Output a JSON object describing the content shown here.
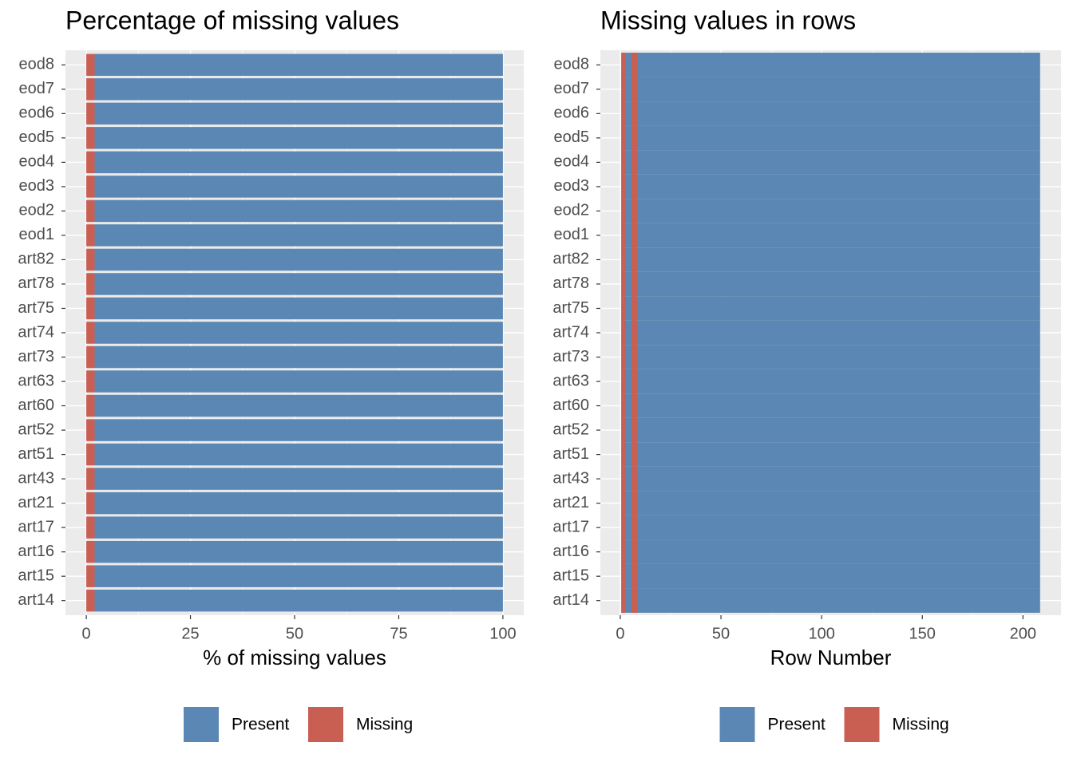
{
  "chart_data": [
    {
      "type": "bar",
      "orientation": "horizontal",
      "stacked": true,
      "title": "Percentage of missing values",
      "xlabel": "% of missing values",
      "categories": [
        "eod8",
        "eod7",
        "eod6",
        "eod5",
        "eod4",
        "eod3",
        "eod2",
        "eod1",
        "art82",
        "art78",
        "art75",
        "art74",
        "art73",
        "art63",
        "art60",
        "art52",
        "art51",
        "art43",
        "art21",
        "art17",
        "art16",
        "art15",
        "art14"
      ],
      "series": [
        {
          "name": "Present",
          "color": "#5a87b4",
          "values": [
            98,
            98,
            98,
            98,
            98,
            98,
            98,
            98,
            98,
            98,
            98,
            98,
            98,
            98,
            98,
            98,
            98,
            98,
            98,
            98,
            98,
            98,
            98
          ]
        },
        {
          "name": "Missing",
          "color": "#c95f52",
          "values": [
            2,
            2,
            2,
            2,
            2,
            2,
            2,
            2,
            2,
            2,
            2,
            2,
            2,
            2,
            2,
            2,
            2,
            2,
            2,
            2,
            2,
            2,
            2
          ]
        }
      ],
      "xlim": [
        -5,
        105
      ],
      "xticks": [
        0,
        25,
        50,
        75,
        100
      ],
      "grid": true
    },
    {
      "type": "raster",
      "title": "Missing values in rows",
      "xlabel": "Row Number",
      "categories": [
        "eod8",
        "eod7",
        "eod6",
        "eod5",
        "eod4",
        "eod3",
        "eod2",
        "eod1",
        "art82",
        "art78",
        "art75",
        "art74",
        "art73",
        "art63",
        "art60",
        "art52",
        "art51",
        "art43",
        "art21",
        "art17",
        "art16",
        "art15",
        "art14"
      ],
      "series": [
        {
          "name": "Present",
          "color": "#5a87b4"
        },
        {
          "name": "Missing",
          "color": "#c95f52"
        }
      ],
      "n_rows": 208,
      "missing_rows": [
        1,
        2,
        6,
        7,
        8
      ],
      "xlim": [
        -9.9,
        218.9
      ],
      "xticks": [
        0,
        50,
        100,
        150,
        200
      ],
      "grid": true
    }
  ]
}
